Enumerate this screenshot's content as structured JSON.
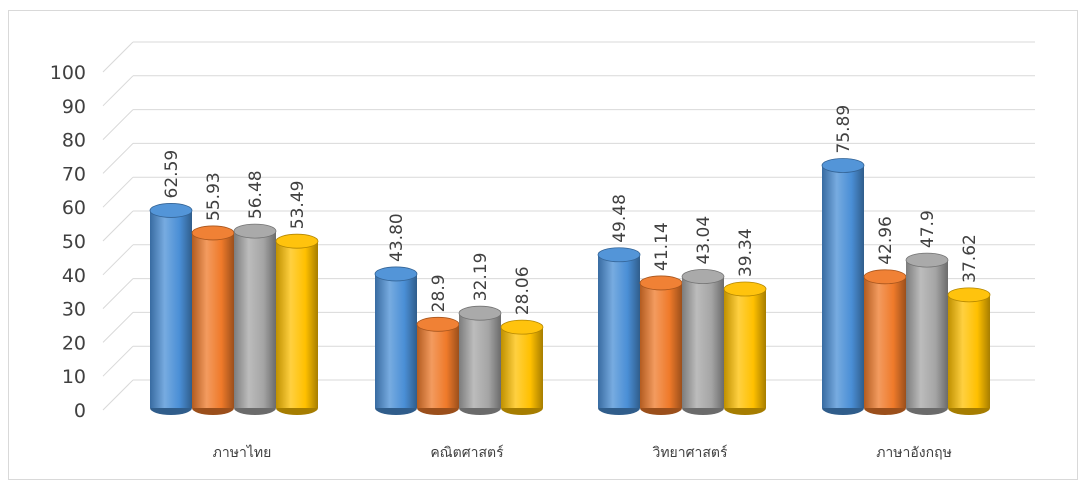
{
  "chart_data": {
    "type": "bar",
    "categories": [
      "ภาษาไทย",
      "คณิตศาสตร์",
      "วิทยาศาสตร์",
      "ภาษาอังกฤษ"
    ],
    "series": [
      {
        "values": [
          62.59,
          43.8,
          49.48,
          75.89
        ],
        "labels": [
          "62.59",
          "43.80",
          "49.48",
          "75.89"
        ],
        "color": "#4a8fd6"
      },
      {
        "values": [
          55.93,
          28.9,
          41.14,
          42.96
        ],
        "labels": [
          "55.93",
          "28.9",
          "41.14",
          "42.96"
        ],
        "color": "#ef7a2a"
      },
      {
        "values": [
          56.48,
          32.19,
          43.04,
          47.9
        ],
        "labels": [
          "56.48",
          "32.19",
          "43.04",
          "47.9"
        ],
        "color": "#a5a5a5"
      },
      {
        "values": [
          53.49,
          28.06,
          39.34,
          37.62
        ],
        "labels": [
          "53.49",
          "28.06",
          "39.34",
          "37.62"
        ],
        "color": "#ffc000"
      }
    ],
    "ylim": [
      0,
      100
    ],
    "yticks": [
      "0",
      "10",
      "20",
      "30",
      "40",
      "50",
      "60",
      "70",
      "80",
      "90",
      "100"
    ],
    "grid": true,
    "style": "3d-cylinder"
  }
}
